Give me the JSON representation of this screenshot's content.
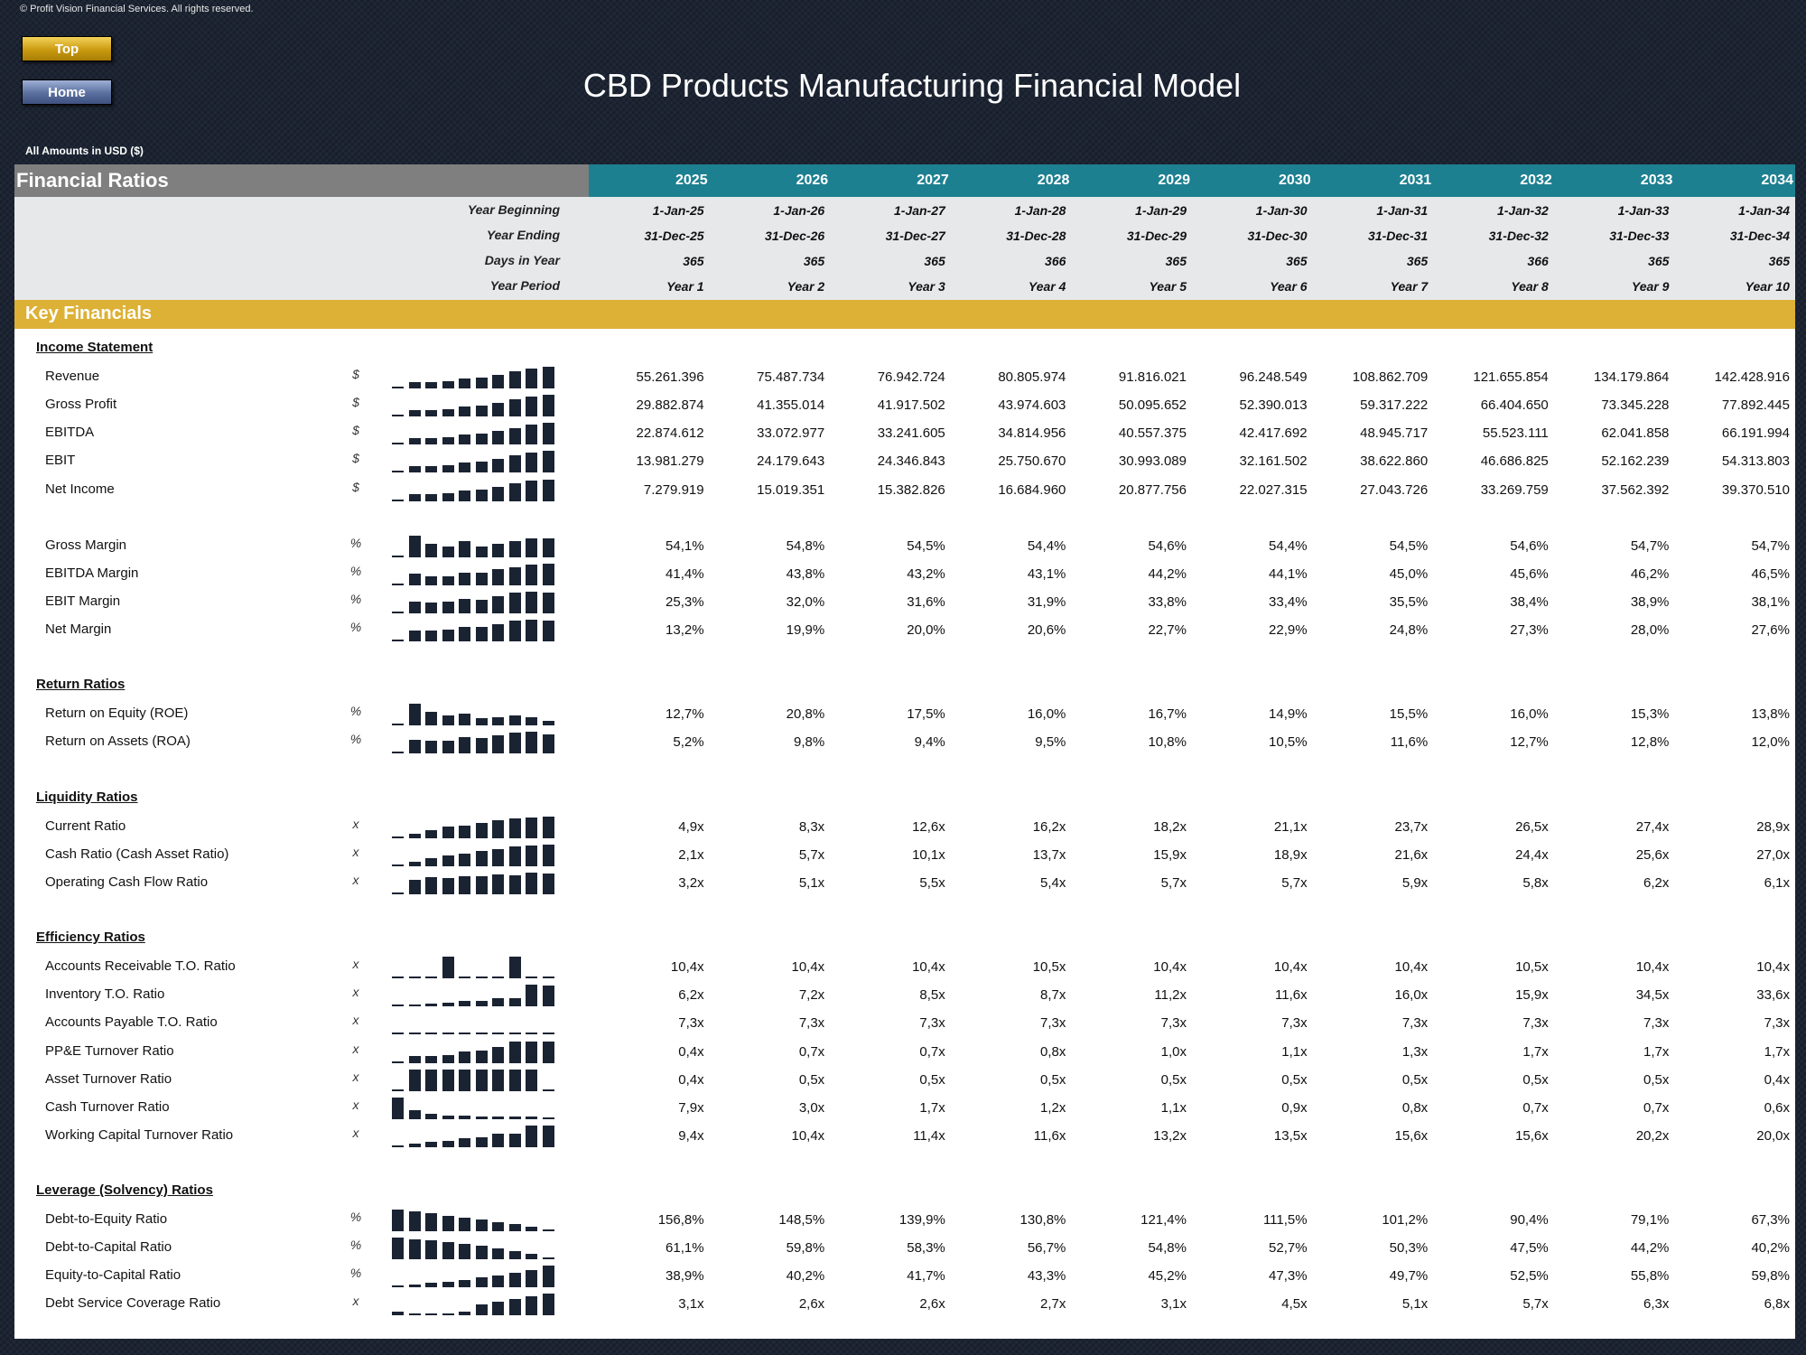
{
  "header": {
    "copyright": "© Profit Vision Financial Services. All rights reserved.",
    "top_button": "Top",
    "home_button": "Home",
    "title": "CBD Products Manufacturing Financial Model",
    "amounts_note": "All Amounts in  USD ($)"
  },
  "table": {
    "title": "Financial Ratios",
    "years": [
      "2025",
      "2026",
      "2027",
      "2028",
      "2029",
      "2030",
      "2031",
      "2032",
      "2033",
      "2034"
    ],
    "meta": [
      {
        "label": "Year Beginning",
        "values": [
          "1-Jan-25",
          "1-Jan-26",
          "1-Jan-27",
          "1-Jan-28",
          "1-Jan-29",
          "1-Jan-30",
          "1-Jan-31",
          "1-Jan-32",
          "1-Jan-33",
          "1-Jan-34"
        ]
      },
      {
        "label": "Year Ending",
        "values": [
          "31-Dec-25",
          "31-Dec-26",
          "31-Dec-27",
          "31-Dec-28",
          "31-Dec-29",
          "31-Dec-30",
          "31-Dec-31",
          "31-Dec-32",
          "31-Dec-33",
          "31-Dec-34"
        ]
      },
      {
        "label": "Days in Year",
        "values": [
          "365",
          "365",
          "365",
          "366",
          "365",
          "365",
          "365",
          "366",
          "365",
          "365"
        ]
      },
      {
        "label": "Year Period",
        "values": [
          "Year 1",
          "Year 2",
          "Year 3",
          "Year 4",
          "Year 5",
          "Year 6",
          "Year 7",
          "Year 8",
          "Year 9",
          "Year 10"
        ]
      }
    ],
    "key_band": "Key Financials",
    "sections": [
      {
        "title": "Income Statement",
        "rows": [
          {
            "label": "Revenue",
            "unit": "$",
            "values": [
              "55.261.396",
              "75.487.734",
              "76.942.724",
              "80.805.974",
              "91.816.021",
              "96.248.549",
              "108.862.709",
              "121.655.854",
              "134.179.864",
              "142.428.916"
            ]
          },
          {
            "label": "Gross Profit",
            "unit": "$",
            "values": [
              "29.882.874",
              "41.355.014",
              "41.917.502",
              "43.974.603",
              "50.095.652",
              "52.390.013",
              "59.317.222",
              "66.404.650",
              "73.345.228",
              "77.892.445"
            ]
          },
          {
            "label": "EBITDA",
            "unit": "$",
            "values": [
              "22.874.612",
              "33.072.977",
              "33.241.605",
              "34.814.956",
              "40.557.375",
              "42.417.692",
              "48.945.717",
              "55.523.111",
              "62.041.858",
              "66.191.994"
            ]
          },
          {
            "label": "EBIT",
            "unit": "$",
            "values": [
              "13.981.279",
              "24.179.643",
              "24.346.843",
              "25.750.670",
              "30.993.089",
              "32.161.502",
              "38.622.860",
              "46.686.825",
              "52.162.239",
              "54.313.803"
            ]
          },
          {
            "label": "Net Income",
            "unit": "$",
            "values": [
              "7.279.919",
              "15.019.351",
              "15.382.826",
              "16.684.960",
              "20.877.756",
              "22.027.315",
              "27.043.726",
              "33.269.759",
              "37.562.392",
              "39.370.510"
            ]
          },
          {
            "label": "Gross Margin",
            "unit": "%",
            "gap": true,
            "values": [
              "54,1%",
              "54,8%",
              "54,5%",
              "54,4%",
              "54,6%",
              "54,4%",
              "54,5%",
              "54,6%",
              "54,7%",
              "54,7%"
            ]
          },
          {
            "label": "EBITDA Margin",
            "unit": "%",
            "values": [
              "41,4%",
              "43,8%",
              "43,2%",
              "43,1%",
              "44,2%",
              "44,1%",
              "45,0%",
              "45,6%",
              "46,2%",
              "46,5%"
            ]
          },
          {
            "label": "EBIT Margin",
            "unit": "%",
            "values": [
              "25,3%",
              "32,0%",
              "31,6%",
              "31,9%",
              "33,8%",
              "33,4%",
              "35,5%",
              "38,4%",
              "38,9%",
              "38,1%"
            ]
          },
          {
            "label": "Net Margin",
            "unit": "%",
            "values": [
              "13,2%",
              "19,9%",
              "20,0%",
              "20,6%",
              "22,7%",
              "22,9%",
              "24,8%",
              "27,3%",
              "28,0%",
              "27,6%"
            ]
          }
        ]
      },
      {
        "title": "Return Ratios",
        "rows": [
          {
            "label": "Return on Equity (ROE)",
            "unit": "%",
            "values": [
              "12,7%",
              "20,8%",
              "17,5%",
              "16,0%",
              "16,7%",
              "14,9%",
              "15,5%",
              "16,0%",
              "15,3%",
              "13,8%"
            ]
          },
          {
            "label": "Return on Assets (ROA)",
            "unit": "%",
            "values": [
              "5,2%",
              "9,8%",
              "9,4%",
              "9,5%",
              "10,8%",
              "10,5%",
              "11,6%",
              "12,7%",
              "12,8%",
              "12,0%"
            ]
          }
        ]
      },
      {
        "title": "Liquidity Ratios",
        "rows": [
          {
            "label": "Current Ratio",
            "unit": "x",
            "values": [
              "4,9x",
              "8,3x",
              "12,6x",
              "16,2x",
              "18,2x",
              "21,1x",
              "23,7x",
              "26,5x",
              "27,4x",
              "28,9x"
            ]
          },
          {
            "label": "Cash Ratio (Cash Asset Ratio)",
            "unit": "x",
            "values": [
              "2,1x",
              "5,7x",
              "10,1x",
              "13,7x",
              "15,9x",
              "18,9x",
              "21,6x",
              "24,4x",
              "25,6x",
              "27,0x"
            ]
          },
          {
            "label": "Operating Cash Flow Ratio",
            "unit": "x",
            "values": [
              "3,2x",
              "5,1x",
              "5,5x",
              "5,4x",
              "5,7x",
              "5,7x",
              "5,9x",
              "5,8x",
              "6,2x",
              "6,1x"
            ]
          }
        ]
      },
      {
        "title": "Efficiency Ratios",
        "rows": [
          {
            "label": "Accounts Receivable T.O. Ratio",
            "unit": "x",
            "values": [
              "10,4x",
              "10,4x",
              "10,4x",
              "10,5x",
              "10,4x",
              "10,4x",
              "10,4x",
              "10,5x",
              "10,4x",
              "10,4x"
            ]
          },
          {
            "label": "Inventory T.O. Ratio",
            "unit": "x",
            "values": [
              "6,2x",
              "7,2x",
              "8,5x",
              "8,7x",
              "11,2x",
              "11,6x",
              "16,0x",
              "15,9x",
              "34,5x",
              "33,6x"
            ]
          },
          {
            "label": "Accounts Payable T.O. Ratio",
            "unit": "x",
            "values": [
              "7,3x",
              "7,3x",
              "7,3x",
              "7,3x",
              "7,3x",
              "7,3x",
              "7,3x",
              "7,3x",
              "7,3x",
              "7,3x"
            ]
          },
          {
            "label": "PP&E Turnover Ratio",
            "unit": "x",
            "values": [
              "0,4x",
              "0,7x",
              "0,7x",
              "0,8x",
              "1,0x",
              "1,1x",
              "1,3x",
              "1,7x",
              "1,7x",
              "1,7x"
            ]
          },
          {
            "label": "Asset Turnover Ratio",
            "unit": "x",
            "values": [
              "0,4x",
              "0,5x",
              "0,5x",
              "0,5x",
              "0,5x",
              "0,5x",
              "0,5x",
              "0,5x",
              "0,5x",
              "0,4x"
            ]
          },
          {
            "label": "Cash Turnover Ratio",
            "unit": "x",
            "values": [
              "7,9x",
              "3,0x",
              "1,7x",
              "1,2x",
              "1,1x",
              "0,9x",
              "0,8x",
              "0,7x",
              "0,7x",
              "0,6x"
            ]
          },
          {
            "label": "Working Capital Turnover Ratio",
            "unit": "x",
            "values": [
              "9,4x",
              "10,4x",
              "11,4x",
              "11,6x",
              "13,2x",
              "13,5x",
              "15,6x",
              "15,6x",
              "20,2x",
              "20,0x"
            ]
          }
        ]
      },
      {
        "title": "Leverage (Solvency) Ratios",
        "rows": [
          {
            "label": "Debt-to-Equity Ratio",
            "unit": "%",
            "values": [
              "156,8%",
              "148,5%",
              "139,9%",
              "130,8%",
              "121,4%",
              "111,5%",
              "101,2%",
              "90,4%",
              "79,1%",
              "67,3%"
            ]
          },
          {
            "label": "Debt-to-Capital Ratio",
            "unit": "%",
            "values": [
              "61,1%",
              "59,8%",
              "58,3%",
              "56,7%",
              "54,8%",
              "52,7%",
              "50,3%",
              "47,5%",
              "44,2%",
              "40,2%"
            ]
          },
          {
            "label": "Equity-to-Capital Ratio",
            "unit": "%",
            "values": [
              "38,9%",
              "40,2%",
              "41,7%",
              "43,3%",
              "45,2%",
              "47,3%",
              "49,7%",
              "52,5%",
              "55,8%",
              "59,8%"
            ]
          },
          {
            "label": "Debt Service Coverage Ratio",
            "unit": "x",
            "values": [
              "3,1x",
              "2,6x",
              "2,6x",
              "2,7x",
              "3,1x",
              "4,5x",
              "5,1x",
              "5,7x",
              "6,3x",
              "6,8x"
            ]
          }
        ]
      }
    ]
  },
  "colors": {
    "background": "#1c2433",
    "title_bar_gray": "#7f7f7f",
    "year_header_teal": "#1d8091",
    "key_band_gold": "#ddb136",
    "sparkline_bar": "#1a2332"
  }
}
